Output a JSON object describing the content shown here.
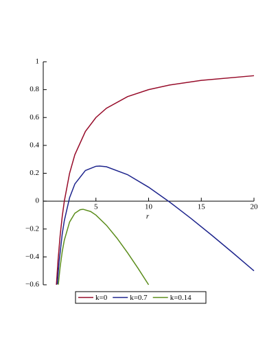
{
  "chart_data": {
    "type": "line",
    "x_label": "r",
    "xlim": [
      0,
      20
    ],
    "ylim": [
      -0.6,
      1
    ],
    "xticks": [
      5,
      10,
      15,
      20
    ],
    "yticks": [
      {
        "value": -0.6,
        "label": "−0.6"
      },
      {
        "value": -0.4,
        "label": "−0.4"
      },
      {
        "value": -0.2,
        "label": "−0.2"
      },
      0,
      0.2,
      0.4,
      0.6,
      0.8,
      1
    ],
    "legend": "bottom",
    "series": [
      {
        "name": "k=0",
        "color": "#960a28",
        "x": [
          1.25,
          1.4,
          1.6,
          1.8,
          2,
          2.5,
          3,
          4,
          5,
          6,
          8,
          10,
          12,
          15,
          20
        ],
        "values": [
          -0.6,
          -0.4286,
          -0.25,
          -0.1111,
          0,
          0.2,
          0.3333,
          0.5,
          0.6,
          0.6667,
          0.75,
          0.8,
          0.8333,
          0.8667,
          0.9
        ]
      },
      {
        "name": "k=0.7",
        "color": "#1c238c",
        "x": [
          1.33,
          1.5,
          1.8,
          2,
          2.5,
          3,
          4,
          5,
          5.35,
          6,
          8,
          10,
          12,
          14,
          16,
          18,
          20
        ],
        "values": [
          -0.597,
          -0.4383,
          -0.2371,
          -0.14,
          0.025,
          0.1233,
          0.22,
          0.25,
          0.2517,
          0.2467,
          0.19,
          0.1,
          -0.0067,
          -0.1229,
          -0.245,
          -0.3711,
          -0.5
        ]
      },
      {
        "name": "k=0.14",
        "color": "#5a8c1a",
        "x": [
          1.43,
          1.6,
          1.8,
          2,
          2.5,
          3,
          3.5,
          3.78,
          4.5,
          5,
          6,
          7,
          8,
          9,
          10
        ],
        "values": [
          -0.5988,
          -0.474,
          -0.3631,
          -0.28,
          -0.15,
          -0.0867,
          -0.0614,
          -0.0583,
          -0.0744,
          -0.1,
          -0.1733,
          -0.2657,
          -0.37,
          -0.4822,
          -0.6
        ]
      }
    ]
  }
}
